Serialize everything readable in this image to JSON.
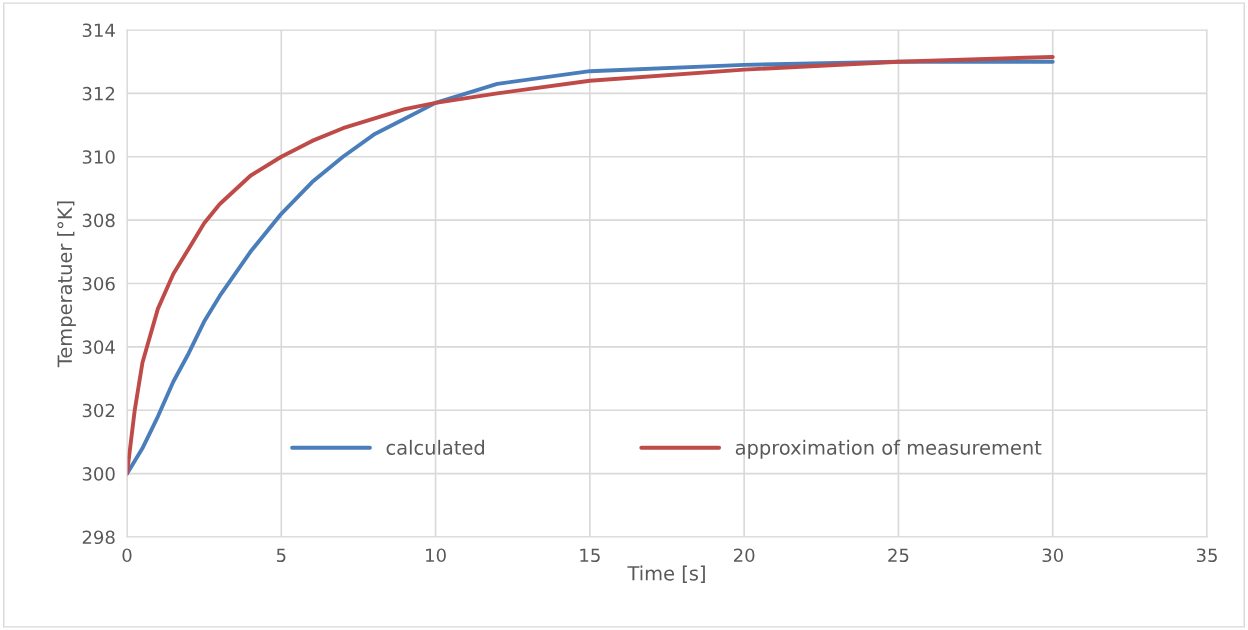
{
  "chart_data": {
    "type": "line",
    "xlabel": "Time [s]",
    "ylabel": "Temperatuer [°K]",
    "x": [
      0,
      0.25,
      0.5,
      1,
      1.5,
      2,
      2.5,
      3,
      4,
      5,
      6,
      7,
      8,
      9,
      10,
      12,
      15,
      20,
      25,
      30
    ],
    "series": [
      {
        "name": "calculated",
        "color": "#4a7ebb",
        "values": [
          300,
          300.4,
          300.8,
          301.8,
          302.9,
          303.8,
          304.8,
          305.6,
          307.0,
          308.2,
          309.2,
          310.0,
          310.7,
          311.2,
          311.7,
          312.3,
          312.7,
          312.9,
          313.0,
          313.0
        ]
      },
      {
        "name": "approximation of measurement",
        "color": "#be4b48",
        "values": [
          300,
          302.0,
          303.5,
          305.2,
          306.3,
          307.1,
          307.9,
          308.5,
          309.4,
          310.0,
          310.5,
          310.9,
          311.2,
          311.5,
          311.7,
          312.0,
          312.4,
          312.75,
          313.0,
          313.15
        ]
      }
    ],
    "xlim": [
      0,
      35
    ],
    "xticks": [
      0,
      5,
      10,
      15,
      20,
      25,
      30,
      35
    ],
    "ylim": [
      298,
      314
    ],
    "yticks": [
      298,
      300,
      302,
      304,
      306,
      308,
      310,
      312,
      314
    ],
    "grid": true,
    "legend": "bottom",
    "marker": "none",
    "line_style": "solid"
  }
}
